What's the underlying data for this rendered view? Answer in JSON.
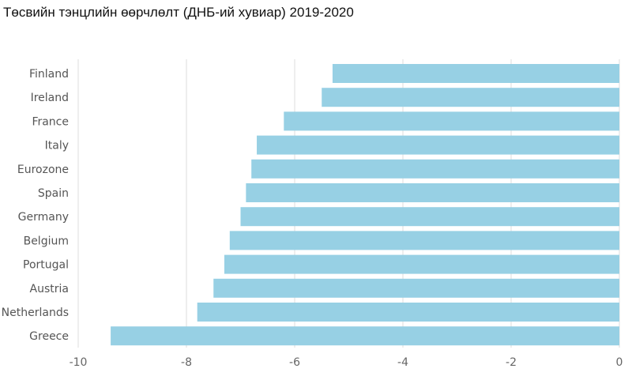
{
  "chart_data": {
    "type": "bar",
    "orientation": "horizontal",
    "title": "Төсвийн тэнцлийн өөрчлөлт (ДНБ-ий хувиар) 2019-2020",
    "categories": [
      "Finland",
      "Ireland",
      "France",
      "Italy",
      "Eurozone",
      "Spain",
      "Germany",
      "Belgium",
      "Portugal",
      "Austria",
      "Netherlands",
      "Greece"
    ],
    "values": [
      -5.3,
      -5.5,
      -6.2,
      -6.7,
      -6.8,
      -6.9,
      -7.0,
      -7.2,
      -7.3,
      -7.5,
      -7.8,
      -9.4
    ],
    "xlim": [
      -10,
      0
    ],
    "xticks": [
      "-10",
      "-8",
      "-6",
      "-4",
      "-2",
      "0"
    ],
    "xtick_values": [
      -10,
      -8,
      -6,
      -4,
      -2,
      0
    ],
    "xlabel": "",
    "ylabel": "",
    "grid": true,
    "bar_color": "#97d0e4",
    "grid_color": "#dcdcdc"
  }
}
